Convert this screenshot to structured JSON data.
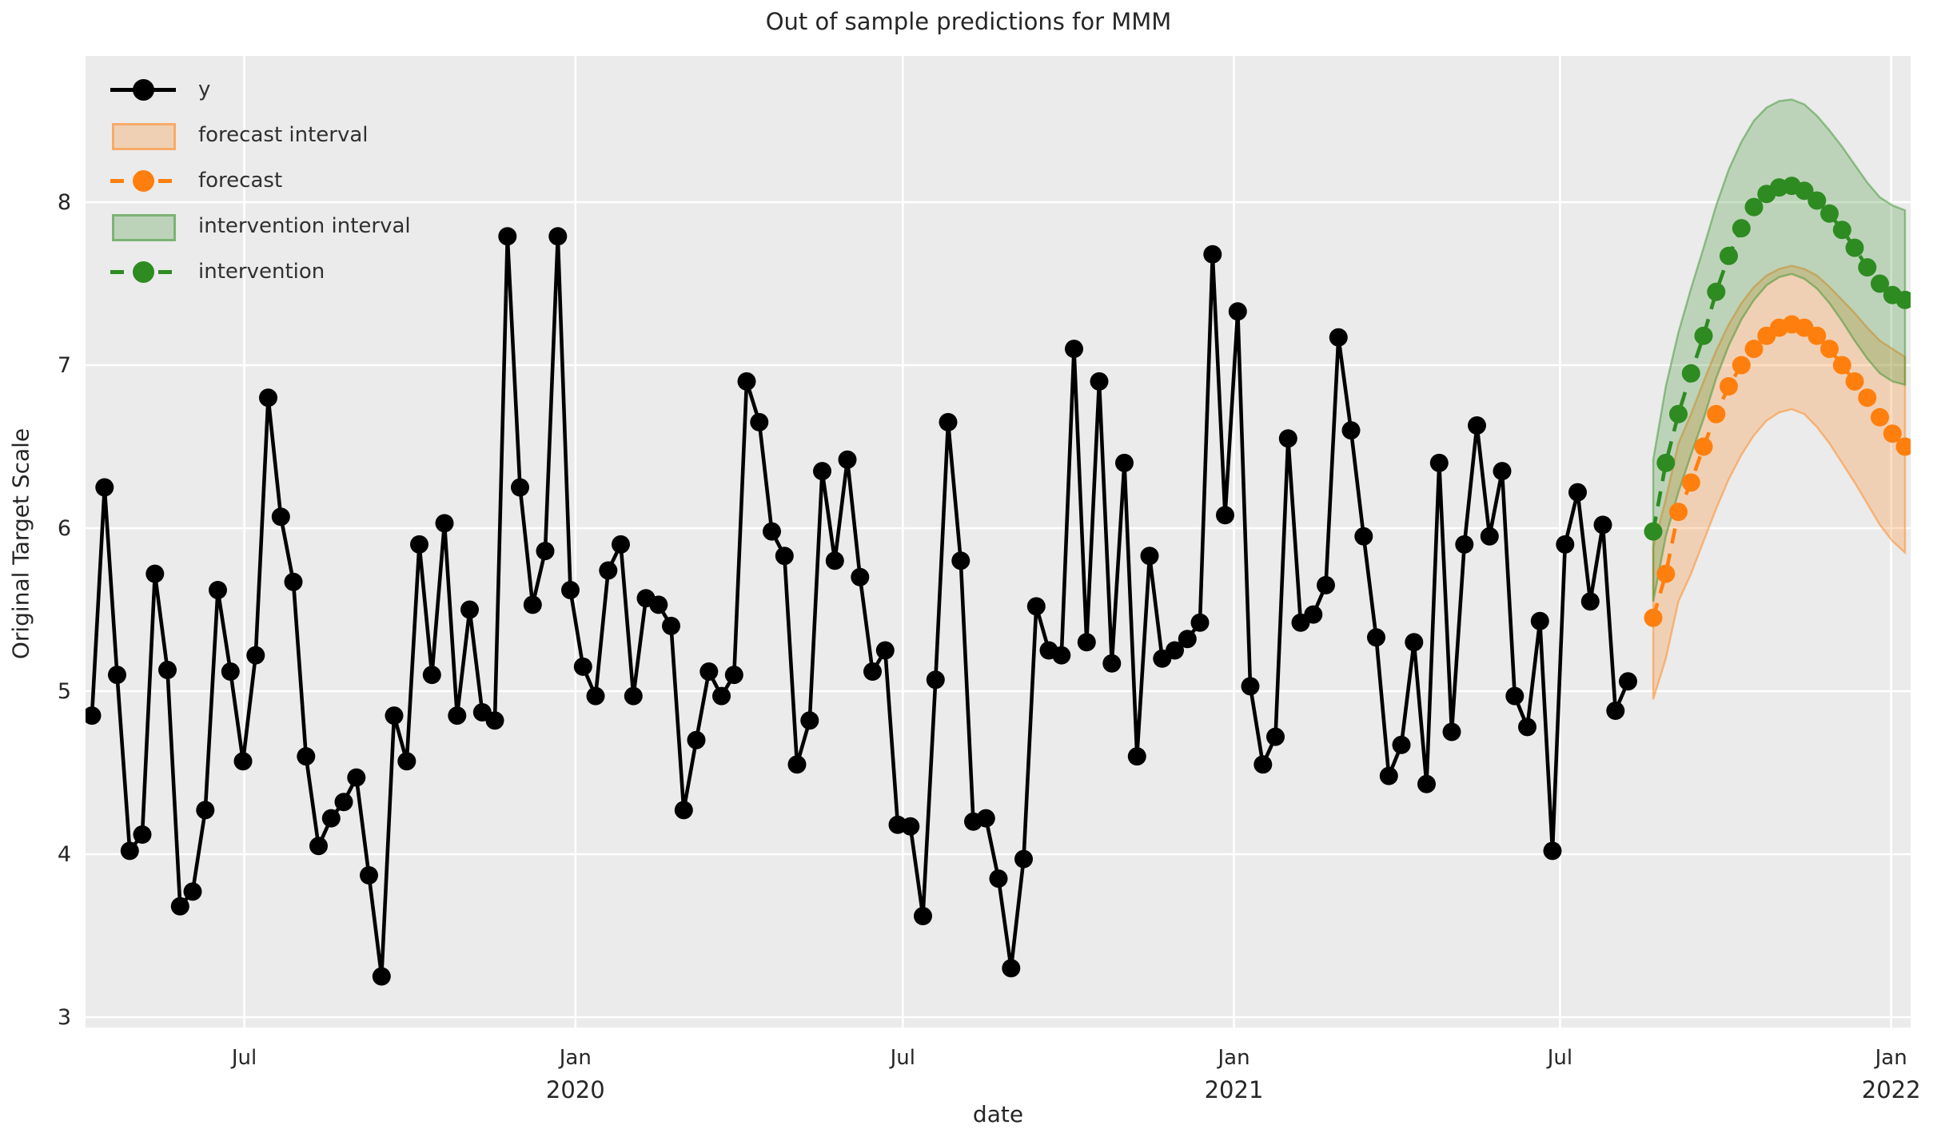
{
  "title": "Out of sample predictions for MMM",
  "axes": {
    "x_label": "date",
    "y_label": "Original Target Scale"
  },
  "legend": {
    "items": [
      {
        "label": "y",
        "swatch": "line",
        "color": "#000000"
      },
      {
        "label": "forecast interval",
        "swatch": "patch",
        "fill": "rgba(255,127,14,0.25)",
        "edge": "rgba(255,127,14,0.45)"
      },
      {
        "label": "forecast",
        "swatch": "dashed",
        "color": "#ff7f0e"
      },
      {
        "label": "intervention interval",
        "swatch": "patch",
        "fill": "rgba(46,139,34,0.25)",
        "edge": "rgba(46,139,34,0.45)"
      },
      {
        "label": "intervention",
        "swatch": "dashed",
        "color": "#2e8b22"
      }
    ]
  },
  "colors": {
    "plot_background": "#ebebeb",
    "grid": "#ffffff",
    "text": "#262626",
    "y_series": "#000000",
    "forecast": "#ff7f0e",
    "intervention": "#2e8b22"
  },
  "chart_data": {
    "type": "line",
    "title": "Out of sample predictions for MMM",
    "xlabel": "date",
    "ylabel": "Original Target Scale",
    "grid": true,
    "legend_position": "upper-left",
    "x_unit": "weeks",
    "ylim": [
      2.95,
      8.88
    ],
    "xlim_weeks": [
      -0.5,
      144.6
    ],
    "y_ticks": [
      3,
      4,
      5,
      6,
      7,
      8
    ],
    "x_ticks": [
      {
        "label": "Jul",
        "year": "",
        "week": 12.1
      },
      {
        "label": "Jan",
        "year": "2020",
        "week": 38.4
      },
      {
        "label": "Jul",
        "year": "",
        "week": 64.4
      },
      {
        "label": "Jan",
        "year": "2021",
        "week": 90.7
      },
      {
        "label": "Jul",
        "year": "",
        "week": 116.6
      },
      {
        "label": "Jan",
        "year": "2022",
        "week": 142.9
      }
    ],
    "series": [
      {
        "name": "y",
        "color": "#000000",
        "style": "solid",
        "markers": true,
        "start_week": 0,
        "values": [
          4.85,
          6.25,
          5.1,
          4.02,
          4.12,
          5.72,
          5.13,
          3.68,
          3.77,
          4.27,
          5.62,
          5.12,
          4.57,
          5.22,
          6.8,
          6.07,
          5.67,
          4.6,
          4.05,
          4.22,
          4.32,
          4.47,
          3.87,
          3.25,
          4.85,
          4.57,
          5.9,
          5.1,
          6.03,
          4.85,
          5.5,
          4.87,
          4.82,
          7.79,
          6.25,
          5.53,
          5.86,
          7.79,
          5.62,
          5.15,
          4.97,
          5.74,
          5.9,
          4.97,
          5.57,
          5.53,
          5.4,
          4.27,
          4.7,
          5.12,
          4.97,
          5.1,
          6.9,
          6.65,
          5.98,
          5.83,
          4.55,
          4.82,
          6.35,
          5.8,
          6.42,
          5.7,
          5.12,
          5.25,
          4.18,
          4.17,
          3.62,
          5.07,
          6.65,
          5.8,
          4.2,
          4.22,
          3.85,
          3.3,
          3.97,
          5.52,
          5.25,
          5.22,
          7.1,
          5.3,
          6.9,
          5.17,
          6.4,
          4.6,
          5.83,
          5.2,
          5.25,
          5.32,
          5.42,
          7.68,
          6.08,
          7.33,
          5.03,
          4.55,
          4.72,
          6.55,
          5.42,
          5.47,
          5.65,
          7.17,
          6.6,
          5.95,
          5.33,
          4.48,
          4.67,
          5.3,
          4.43,
          6.4,
          4.75,
          5.9,
          6.63,
          5.95,
          6.35,
          4.97,
          4.78,
          5.43,
          4.02,
          5.9,
          6.22,
          5.55,
          6.02,
          4.88,
          5.06
        ]
      },
      {
        "name": "forecast",
        "color": "#ff7f0e",
        "style": "dashed",
        "markers": true,
        "start_week": 124,
        "values": [
          5.45,
          5.72,
          6.1,
          6.28,
          6.5,
          6.7,
          6.87,
          7.0,
          7.1,
          7.18,
          7.23,
          7.25,
          7.23,
          7.18,
          7.1,
          7.0,
          6.9,
          6.8,
          6.68,
          6.58,
          6.5
        ]
      },
      {
        "name": "intervention",
        "color": "#2e8b22",
        "style": "dashed",
        "markers": true,
        "start_week": 124,
        "values": [
          5.98,
          6.4,
          6.7,
          6.95,
          7.18,
          7.45,
          7.67,
          7.84,
          7.97,
          8.05,
          8.09,
          8.1,
          8.07,
          8.01,
          7.93,
          7.83,
          7.72,
          7.6,
          7.5,
          7.43,
          7.4
        ]
      }
    ],
    "bands": [
      {
        "name": "forecast interval",
        "color": "#ff7f0e",
        "fill_opacity": 0.25,
        "edge_opacity": 0.45,
        "start_week": 124,
        "upper": [
          5.88,
          6.18,
          6.52,
          6.7,
          6.9,
          7.09,
          7.25,
          7.38,
          7.48,
          7.55,
          7.59,
          7.61,
          7.59,
          7.55,
          7.48,
          7.4,
          7.32,
          7.23,
          7.15,
          7.1,
          7.05
        ],
        "lower": [
          4.95,
          5.2,
          5.55,
          5.72,
          5.92,
          6.12,
          6.3,
          6.45,
          6.57,
          6.66,
          6.71,
          6.73,
          6.7,
          6.62,
          6.52,
          6.4,
          6.28,
          6.15,
          6.02,
          5.92,
          5.85
        ]
      },
      {
        "name": "intervention interval",
        "color": "#2e8b22",
        "fill_opacity": 0.25,
        "edge_opacity": 0.45,
        "start_week": 124,
        "upper": [
          6.42,
          6.87,
          7.2,
          7.47,
          7.72,
          7.98,
          8.2,
          8.37,
          8.5,
          8.58,
          8.62,
          8.63,
          8.6,
          8.53,
          8.44,
          8.34,
          8.23,
          8.12,
          8.03,
          7.98,
          7.95
        ],
        "lower": [
          5.55,
          5.95,
          6.22,
          6.45,
          6.67,
          6.92,
          7.12,
          7.28,
          7.4,
          7.49,
          7.54,
          7.56,
          7.53,
          7.47,
          7.38,
          7.27,
          7.15,
          7.04,
          6.95,
          6.9,
          6.88
        ]
      }
    ]
  }
}
